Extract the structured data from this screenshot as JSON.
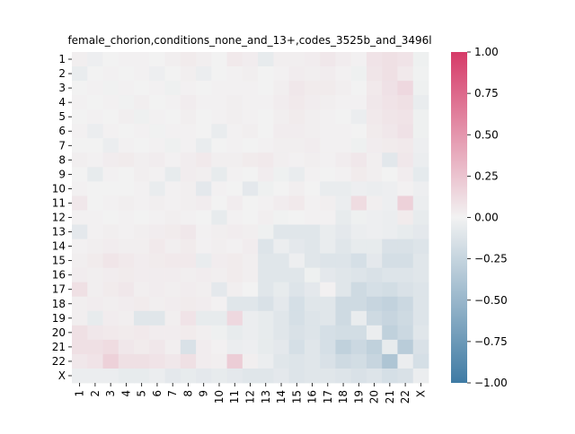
{
  "chart_data": {
    "type": "heatmap",
    "title": "female_chorion,conditions_none_and_13+,codes_3525b_and_3496l",
    "xlabel": "",
    "ylabel": "",
    "row_labels": [
      "1",
      "2",
      "3",
      "4",
      "5",
      "6",
      "7",
      "8",
      "9",
      "10",
      "11",
      "12",
      "13",
      "14",
      "15",
      "16",
      "17",
      "18",
      "19",
      "20",
      "21",
      "22",
      "X"
    ],
    "col_labels": [
      "1",
      "2",
      "3",
      "4",
      "5",
      "6",
      "7",
      "8",
      "9",
      "10",
      "11",
      "12",
      "13",
      "14",
      "15",
      "16",
      "17",
      "18",
      "19",
      "20",
      "21",
      "22",
      "X"
    ],
    "colorbar": {
      "vmin": -1.0,
      "vmax": 1.0,
      "ticks": [
        1.0,
        0.75,
        0.5,
        0.25,
        0.0,
        -0.25,
        -0.5,
        -0.75,
        -1.0
      ],
      "tick_labels": [
        "1.00",
        "0.75",
        "0.50",
        "0.25",
        "0.00",
        "−0.25",
        "−0.50",
        "−0.75",
        "−1.00"
      ],
      "colors": {
        "negative": "#3f7ba4",
        "center": "#f2f2f2",
        "positive": "#d63a68"
      }
    },
    "grid": false,
    "values": [
      [
        0.02,
        -0.03,
        0.0,
        0.01,
        0.01,
        0.0,
        0.02,
        0.04,
        0.02,
        0.0,
        0.05,
        0.03,
        -0.06,
        0.02,
        0.02,
        0.03,
        0.06,
        0.03,
        0.01,
        0.08,
        0.1,
        0.08,
        -0.02
      ],
      [
        -0.05,
        0.0,
        0.01,
        0.0,
        0.01,
        -0.03,
        0.0,
        0.02,
        -0.04,
        0.0,
        0.01,
        0.02,
        0.0,
        0.01,
        0.03,
        0.02,
        0.03,
        0.01,
        -0.02,
        0.07,
        0.1,
        0.05,
        -0.01
      ],
      [
        0.0,
        0.01,
        -0.01,
        0.01,
        0.0,
        0.01,
        -0.02,
        0.01,
        0.0,
        0.01,
        0.01,
        0.01,
        0.0,
        0.02,
        0.06,
        0.04,
        0.04,
        0.02,
        0.0,
        0.05,
        0.09,
        0.14,
        -0.02
      ],
      [
        0.01,
        0.0,
        0.01,
        -0.01,
        0.02,
        0.0,
        0.01,
        0.03,
        0.01,
        0.01,
        0.02,
        0.01,
        0.01,
        0.03,
        0.05,
        0.03,
        0.02,
        0.01,
        0.01,
        0.06,
        0.08,
        0.1,
        -0.05
      ],
      [
        0.0,
        0.01,
        0.0,
        0.02,
        -0.02,
        0.01,
        0.0,
        0.02,
        0.0,
        0.01,
        0.02,
        0.01,
        0.0,
        0.02,
        0.04,
        0.02,
        0.01,
        0.0,
        -0.04,
        0.05,
        0.07,
        0.08,
        -0.02
      ],
      [
        0.01,
        -0.04,
        0.01,
        0.0,
        0.01,
        -0.01,
        0.01,
        0.01,
        0.0,
        -0.05,
        0.01,
        0.02,
        0.0,
        0.03,
        0.03,
        0.02,
        0.01,
        0.01,
        0.0,
        0.04,
        0.06,
        0.09,
        -0.02
      ],
      [
        0.0,
        0.0,
        -0.04,
        0.01,
        0.0,
        0.01,
        -0.02,
        0.01,
        -0.05,
        0.0,
        0.01,
        0.0,
        0.01,
        0.02,
        0.02,
        0.03,
        0.01,
        0.01,
        -0.02,
        0.03,
        0.04,
        0.05,
        -0.03
      ],
      [
        0.02,
        0.01,
        0.03,
        0.04,
        0.02,
        0.03,
        0.01,
        0.03,
        0.05,
        0.02,
        0.02,
        0.04,
        0.05,
        0.02,
        0.01,
        0.02,
        0.01,
        0.03,
        0.06,
        0.02,
        -0.09,
        0.06,
        -0.04
      ],
      [
        0.0,
        -0.06,
        0.01,
        0.0,
        0.02,
        0.01,
        -0.06,
        0.03,
        0.02,
        -0.06,
        0.01,
        0.0,
        0.03,
        -0.02,
        -0.05,
        0.01,
        0.0,
        0.01,
        0.04,
        0.02,
        0.0,
        0.03,
        -0.07
      ],
      [
        0.01,
        0.0,
        0.0,
        0.0,
        0.01,
        -0.05,
        0.01,
        0.02,
        -0.08,
        0.01,
        0.0,
        -0.08,
        -0.02,
        0.0,
        0.02,
        0.0,
        -0.05,
        -0.05,
        -0.03,
        -0.04,
        -0.03,
        0.01,
        -0.03
      ],
      [
        0.06,
        0.0,
        0.01,
        0.02,
        0.01,
        0.02,
        0.01,
        0.02,
        0.03,
        0.0,
        0.03,
        0.0,
        0.01,
        0.03,
        0.05,
        0.01,
        0.02,
        -0.04,
        0.12,
        0.02,
        -0.03,
        0.18,
        -0.04
      ],
      [
        0.01,
        0.01,
        0.0,
        0.01,
        0.0,
        0.01,
        0.02,
        0.01,
        0.0,
        -0.06,
        0.01,
        0.0,
        0.02,
        -0.01,
        0.0,
        0.01,
        0.01,
        -0.06,
        -0.02,
        -0.03,
        -0.04,
        0.04,
        -0.06
      ],
      [
        -0.08,
        0.01,
        0.02,
        0.01,
        0.02,
        0.03,
        0.04,
        0.06,
        0.01,
        0.02,
        0.03,
        0.02,
        -0.02,
        -0.1,
        -0.1,
        -0.1,
        -0.05,
        -0.08,
        -0.04,
        -0.03,
        -0.04,
        -0.06,
        -0.08
      ],
      [
        0.01,
        0.02,
        0.03,
        0.02,
        0.02,
        0.05,
        0.02,
        0.04,
        0.01,
        0.02,
        0.01,
        0.03,
        -0.12,
        -0.04,
        -0.08,
        -0.1,
        -0.05,
        -0.1,
        -0.06,
        -0.06,
        -0.14,
        -0.14,
        -0.12
      ],
      [
        0.02,
        0.04,
        0.07,
        0.05,
        0.03,
        0.04,
        0.05,
        0.05,
        -0.05,
        0.03,
        0.04,
        0.02,
        -0.1,
        -0.1,
        -0.03,
        -0.1,
        -0.12,
        -0.12,
        -0.16,
        -0.08,
        -0.17,
        -0.17,
        -0.1
      ],
      [
        0.03,
        0.02,
        0.03,
        0.04,
        0.03,
        0.03,
        0.03,
        0.02,
        0.03,
        0.02,
        0.04,
        0.02,
        -0.1,
        -0.1,
        -0.1,
        -0.02,
        -0.08,
        -0.1,
        -0.12,
        -0.14,
        -0.12,
        -0.12,
        -0.1
      ],
      [
        0.1,
        0.02,
        0.04,
        0.06,
        0.02,
        0.03,
        0.02,
        0.03,
        0.02,
        -0.08,
        0.02,
        0.0,
        -0.1,
        -0.06,
        -0.12,
        -0.08,
        0.01,
        -0.1,
        -0.2,
        -0.16,
        -0.18,
        -0.14,
        -0.12
      ],
      [
        0.02,
        0.03,
        0.02,
        0.03,
        0.04,
        0.02,
        0.03,
        0.04,
        0.03,
        0.01,
        -0.1,
        -0.1,
        -0.14,
        -0.08,
        -0.16,
        -0.1,
        -0.1,
        -0.2,
        -0.2,
        -0.24,
        -0.27,
        -0.22,
        -0.12
      ],
      [
        0.02,
        -0.06,
        0.03,
        0.02,
        -0.1,
        -0.1,
        0.02,
        0.08,
        -0.06,
        -0.06,
        0.14,
        -0.04,
        -0.06,
        -0.1,
        -0.16,
        -0.12,
        -0.1,
        -0.2,
        -0.05,
        -0.2,
        -0.24,
        -0.2,
        -0.12
      ],
      [
        0.1,
        0.06,
        0.05,
        0.04,
        0.05,
        0.03,
        0.03,
        0.04,
        0.02,
        -0.02,
        -0.06,
        -0.04,
        -0.06,
        -0.1,
        -0.14,
        -0.12,
        -0.16,
        -0.18,
        -0.18,
        -0.04,
        -0.28,
        -0.22,
        -0.1
      ],
      [
        0.1,
        0.1,
        0.12,
        0.06,
        0.04,
        0.06,
        0.02,
        -0.14,
        0.03,
        0.01,
        -0.04,
        -0.03,
        -0.06,
        -0.08,
        -0.16,
        -0.1,
        -0.16,
        -0.28,
        -0.22,
        -0.28,
        -0.06,
        -0.32,
        -0.14
      ],
      [
        0.06,
        0.08,
        0.18,
        0.1,
        0.1,
        0.08,
        0.06,
        0.1,
        0.03,
        0.02,
        0.2,
        0.02,
        -0.04,
        -0.1,
        -0.12,
        -0.1,
        -0.14,
        -0.2,
        -0.18,
        -0.24,
        -0.38,
        -0.04,
        -0.16
      ],
      [
        -0.04,
        -0.04,
        -0.04,
        -0.06,
        -0.06,
        -0.04,
        -0.08,
        -0.06,
        -0.08,
        -0.06,
        -0.08,
        -0.1,
        -0.1,
        -0.08,
        -0.12,
        -0.1,
        -0.1,
        -0.12,
        -0.14,
        -0.12,
        -0.16,
        -0.14,
        -0.04
      ]
    ]
  }
}
